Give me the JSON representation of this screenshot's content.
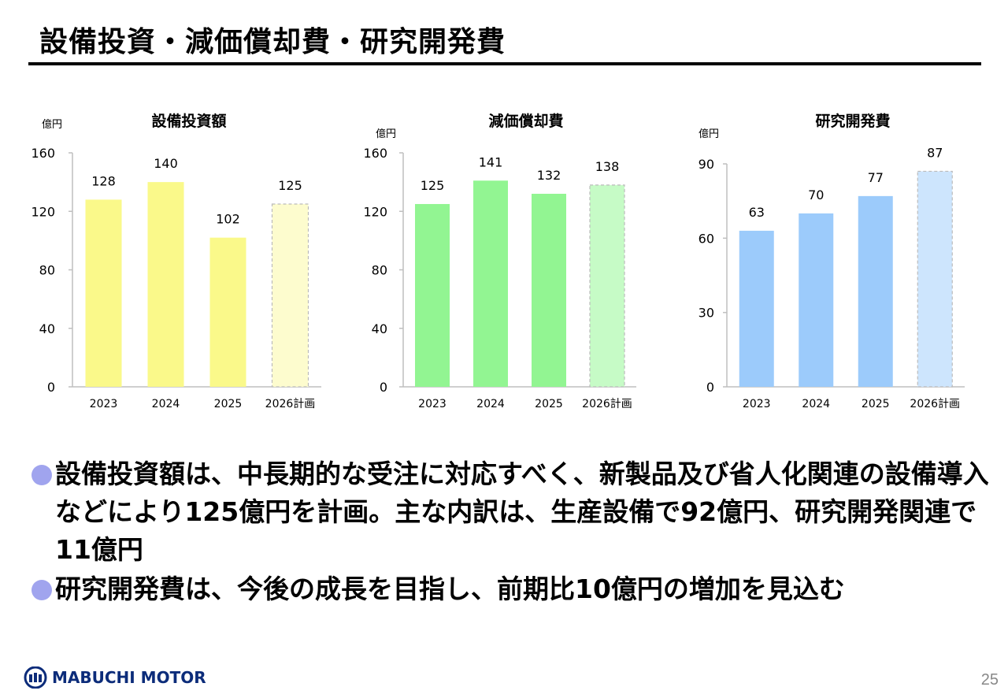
{
  "page_title": "設備投資・減価償却費・研究開発費",
  "chart_data": [
    {
      "type": "bar",
      "title": "設備投資額",
      "unit_label": "億円",
      "categories": [
        "2023",
        "2024",
        "2025",
        "2026計画"
      ],
      "values": [
        128,
        140,
        102,
        125
      ],
      "planned_index": 3,
      "ylim": [
        0,
        160
      ],
      "yticks": [
        0,
        40,
        80,
        120,
        160
      ],
      "bar_color": "#faf98a",
      "plan_color": "#fdfcce"
    },
    {
      "type": "bar",
      "title": "減価償却費",
      "unit_label": "億円",
      "categories": [
        "2023",
        "2024",
        "2025",
        "2026計画"
      ],
      "values": [
        125,
        141,
        132,
        138
      ],
      "planned_index": 3,
      "ylim": [
        0,
        160
      ],
      "yticks": [
        0,
        40,
        80,
        120,
        160
      ],
      "bar_color": "#92f592",
      "plan_color": "#c6fbc6"
    },
    {
      "type": "bar",
      "title": "研究開発費",
      "unit_label": "億円",
      "categories": [
        "2023",
        "2024",
        "2025",
        "2026計画"
      ],
      "values": [
        63,
        70,
        77,
        87
      ],
      "planned_index": 3,
      "ylim": [
        0,
        90
      ],
      "yticks": [
        0,
        30,
        60,
        90
      ],
      "bar_color": "#9ccbfb",
      "plan_color": "#cde5fd"
    }
  ],
  "bullets": [
    "設備投資額は、中長期的な受注に対応すべく、新製品及び省人化関連の設備導入などにより125億円を計画。主な内訳は、生産設備で92億円、研究開発関連で11億円",
    "研究開発費は、今後の成長を目指し、前期比10億円の増加を見込む"
  ],
  "footer": {
    "logo_text": "MABUCHI MOTOR",
    "page_number": "25"
  },
  "colors": {
    "bullet_dot": "#a0a4ee",
    "logo": "#0c2c7a"
  }
}
